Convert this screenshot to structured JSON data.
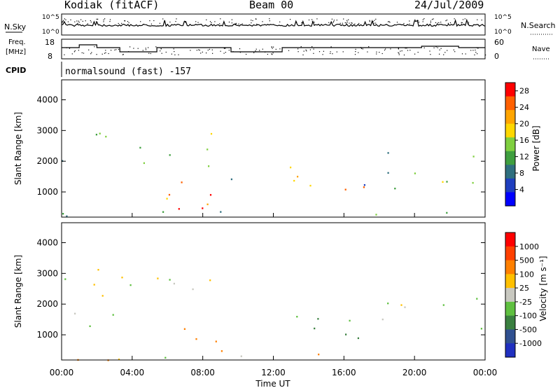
{
  "header": {
    "station": "Kodiak (fitACF)",
    "beam": "Beam 00",
    "date": "24/Jul/2009"
  },
  "noise_panel": {
    "left_label": "N.Sky",
    "right_label": "N.Search",
    "tick_top": "10^5",
    "tick_bottom": "10^0"
  },
  "freq_panel": {
    "left_label_line1": "Freq.",
    "left_label_line2": "[MHz]",
    "left_ticks": [
      "18",
      "8"
    ],
    "right_ticks": [
      "60",
      "0"
    ],
    "right_label": "Nave"
  },
  "cpid_panel": {
    "label": "CPID",
    "text": "normalsound (fast) -157"
  },
  "colors": {
    "background": "#ffffff",
    "axes": "#000000",
    "ground_scatter_gray": "#c0c0c0"
  },
  "chart_data": [
    {
      "type": "heatmap",
      "name": "power-panel",
      "ylabel": "Slant Range [km]",
      "yticks": [
        "1000",
        "2000",
        "3000",
        "4000"
      ],
      "ylim": [
        180,
        4650
      ],
      "x": [
        "00:00",
        "04:00",
        "08:00",
        "12:00",
        "16:00",
        "20:00",
        "00:00"
      ],
      "colorbar": {
        "label": "Power [dB]",
        "ticks": [
          "4",
          "8",
          "12",
          "16",
          "20",
          "24",
          "28"
        ],
        "range": [
          0,
          30
        ],
        "colors": [
          "#0000ff",
          "#1f3fbf",
          "#2f6f7f",
          "#3f9f3f",
          "#7fcf3f",
          "#ffd700",
          "#ffa500",
          "#ff6000",
          "#ff0000"
        ]
      },
      "echo_regions": [
        {
          "t": [
            0.0,
            1.6
          ],
          "r": [
            1300,
            2100
          ],
          "level": 10
        },
        {
          "t": [
            1.6,
            3.2
          ],
          "r": [
            1800,
            3300
          ],
          "level": 12
        },
        {
          "t": [
            3.0,
            5.0
          ],
          "r": [
            1700,
            2800
          ],
          "level": 18
        },
        {
          "t": [
            5.0,
            6.6
          ],
          "r": [
            1900,
            2600
          ],
          "level": 8
        },
        {
          "t": [
            6.6,
            8.6
          ],
          "r": [
            2300,
            3200
          ],
          "level": 16
        },
        {
          "t": [
            4.8,
            8.2
          ],
          "r": [
            700,
            1400
          ],
          "level": 20
        },
        {
          "t": [
            6.4,
            10.0
          ],
          "r": [
            200,
            1200
          ],
          "level": 26
        },
        {
          "t": [
            7.5,
            9.8
          ],
          "r": [
            1400,
            2100
          ],
          "level": 10
        },
        {
          "t": [
            12.0,
            16.0
          ],
          "r": [
            1100,
            1900
          ],
          "level": 20
        },
        {
          "t": [
            14.5,
            17.5
          ],
          "r": [
            800,
            1400
          ],
          "level": 24
        },
        {
          "t": [
            16.5,
            19.0
          ],
          "r": [
            900,
            1500
          ],
          "level": 8
        },
        {
          "t": [
            18.0,
            24.0
          ],
          "r": [
            1200,
            2300
          ],
          "level": 12
        },
        {
          "t": [
            0.0,
            24.0
          ],
          "r": [
            180,
            400
          ],
          "level": 14
        }
      ]
    },
    {
      "type": "heatmap",
      "name": "velocity-panel",
      "ylabel": "Slant Range [km]",
      "yticks": [
        "1000",
        "2000",
        "3000",
        "4000"
      ],
      "ylim": [
        180,
        4650
      ],
      "x": [
        "00:00",
        "04:00",
        "08:00",
        "12:00",
        "16:00",
        "20:00",
        "00:00"
      ],
      "xlabel": "Time UT",
      "colorbar": {
        "label": "Velocity [m s⁻¹]",
        "ticks": [
          "1000",
          "500",
          "100",
          "25",
          "-25",
          "-100",
          "-500",
          "-1000"
        ],
        "colors": [
          "#2030c0",
          "#305090",
          "#3a8040",
          "#5fc040",
          "#c8c8c0",
          "#ffc000",
          "#ff8000",
          "#ff4000",
          "#ff0000"
        ]
      },
      "echo_regions": [
        {
          "t": [
            0.0,
            3.2
          ],
          "r": [
            1300,
            3300
          ],
          "v": 0
        },
        {
          "t": [
            1.5,
            2.2
          ],
          "r": [
            1400,
            2000
          ],
          "v": -150
        },
        {
          "t": [
            3.0,
            6.5
          ],
          "r": [
            1700,
            3000
          ],
          "v": 0
        },
        {
          "t": [
            6.6,
            8.6
          ],
          "r": [
            2300,
            3200
          ],
          "v": 0
        },
        {
          "t": [
            6.0,
            7.5
          ],
          "r": [
            700,
            1400
          ],
          "v": -150
        },
        {
          "t": [
            6.5,
            10.0
          ],
          "r": [
            200,
            900
          ],
          "v": -300
        },
        {
          "t": [
            12.5,
            16.5
          ],
          "r": [
            1100,
            1900
          ],
          "v": 150
        },
        {
          "t": [
            14.5,
            17.5
          ],
          "r": [
            700,
            1300
          ],
          "v": 150
        },
        {
          "t": [
            18.0,
            24.0
          ],
          "r": [
            1200,
            2300
          ],
          "v": 0
        },
        {
          "t": [
            0.0,
            24.0
          ],
          "r": [
            180,
            400
          ],
          "v": -60
        }
      ]
    }
  ]
}
